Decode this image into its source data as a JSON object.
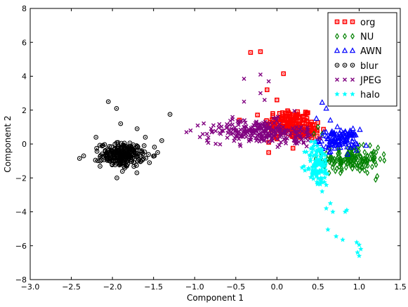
{
  "chart_data": {
    "type": "scatter",
    "xlabel": "Component 1",
    "ylabel": "Component 2",
    "xlim": [
      -3.0,
      1.5
    ],
    "ylim": [
      -8,
      8
    ],
    "xticks": [
      "−3.0",
      "−2.5",
      "−2.0",
      "−1.5",
      "−1.0",
      "−0.5",
      "0.0",
      "0.5",
      "1.0",
      "1.5"
    ],
    "yticks": [
      "−8",
      "−6",
      "−4",
      "−2",
      "0",
      "2",
      "4",
      "6",
      "8"
    ],
    "grid": false,
    "legend_position": "top-right",
    "series": [
      {
        "name": "org",
        "marker": "square-dot",
        "color": "#ff0000",
        "clusters": [
          {
            "cx": 0.15,
            "cy": 1.2,
            "sx": 0.15,
            "sy": 0.45,
            "n": 140
          },
          {
            "cx": 0.35,
            "cy": 0.8,
            "sx": 0.1,
            "sy": 0.25,
            "n": 50
          }
        ],
        "points": [
          [
            -0.32,
            5.4
          ],
          [
            -0.2,
            5.45
          ],
          [
            0.08,
            4.15
          ],
          [
            -0.12,
            3.2
          ],
          [
            -0.1,
            0.1
          ],
          [
            0.0,
            2.6
          ],
          [
            -0.1,
            -0.5
          ],
          [
            0.1,
            1.8
          ],
          [
            0.32,
            1.6
          ],
          [
            0.0,
            0.3
          ]
        ]
      },
      {
        "name": "NU",
        "marker": "diamond",
        "color": "#008000",
        "clusters": [
          {
            "cx": 0.9,
            "cy": -0.9,
            "sx": 0.17,
            "sy": 0.35,
            "n": 160
          }
        ],
        "points": [
          [
            1.2,
            -2.1
          ],
          [
            1.22,
            -1.9
          ],
          [
            1.1,
            -1.7
          ],
          [
            0.55,
            0.6
          ],
          [
            0.5,
            1.0
          ],
          [
            0.45,
            0.6
          ]
        ]
      },
      {
        "name": "AWN",
        "marker": "triangle",
        "color": "#0000ff",
        "clusters": [
          {
            "cx": 0.75,
            "cy": 0.25,
            "sx": 0.12,
            "sy": 0.3,
            "n": 110
          }
        ],
        "points": [
          [
            0.55,
            2.45
          ],
          [
            0.6,
            2.1
          ],
          [
            0.65,
            1.4
          ],
          [
            0.48,
            1.5
          ]
        ]
      },
      {
        "name": "blur",
        "marker": "circle-dot",
        "color": "#000000",
        "clusters": [
          {
            "cx": -1.88,
            "cy": -0.65,
            "sx": 0.13,
            "sy": 0.35,
            "n": 260
          }
        ],
        "points": [
          [
            -1.3,
            1.75
          ],
          [
            -2.05,
            2.5
          ],
          [
            -1.95,
            2.1
          ],
          [
            -2.4,
            -0.85
          ],
          [
            -2.35,
            -0.7
          ],
          [
            -1.55,
            -1.1
          ],
          [
            -1.45,
            -0.5
          ],
          [
            -1.4,
            0.2
          ],
          [
            -1.6,
            0.4
          ],
          [
            -1.7,
            0.9
          ],
          [
            -2.2,
            0.4
          ],
          [
            -1.9,
            1.2
          ]
        ]
      },
      {
        "name": "JPEG",
        "marker": "x",
        "color": "#800080",
        "clusters": [
          {
            "cx": -0.25,
            "cy": 0.75,
            "sx": 0.28,
            "sy": 0.35,
            "n": 220
          },
          {
            "cx": 0.25,
            "cy": 0.4,
            "sx": 0.12,
            "sy": 0.3,
            "n": 40
          }
        ],
        "points": [
          [
            -0.2,
            4.1
          ],
          [
            -0.4,
            3.85
          ],
          [
            -0.1,
            3.7
          ],
          [
            -0.15,
            2.6
          ],
          [
            -0.4,
            2.5
          ],
          [
            -1.05,
            0.8
          ],
          [
            -1.1,
            0.7
          ],
          [
            -0.8,
            0.9
          ],
          [
            -0.85,
            0.2
          ],
          [
            -0.2,
            3.0
          ]
        ]
      },
      {
        "name": "halo",
        "marker": "star",
        "color": "#00ffff",
        "clusters": [
          {
            "cx": 0.5,
            "cy": -1.2,
            "sx": 0.07,
            "sy": 0.65,
            "n": 110
          }
        ],
        "points": [
          [
            0.6,
            -3.8
          ],
          [
            0.65,
            -3.5
          ],
          [
            0.68,
            -4.0
          ],
          [
            0.83,
            -4.0
          ],
          [
            0.85,
            -3.9
          ],
          [
            0.62,
            -5.05
          ],
          [
            0.72,
            -5.45
          ],
          [
            0.8,
            -5.65
          ],
          [
            0.97,
            -5.8
          ],
          [
            1.0,
            -5.95
          ],
          [
            1.02,
            -6.2
          ],
          [
            0.98,
            -6.4
          ],
          [
            1.0,
            -6.6
          ],
          [
            0.5,
            -2.3
          ],
          [
            0.55,
            -2.8
          ],
          [
            0.45,
            -0.1
          ]
        ]
      }
    ]
  }
}
